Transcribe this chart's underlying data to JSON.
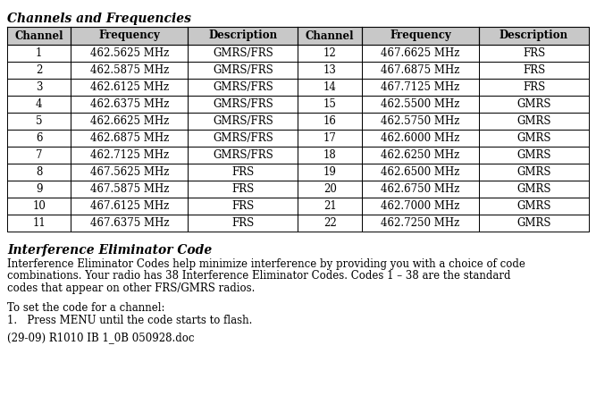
{
  "title": "Channels and Frequencies",
  "header": [
    "Channel",
    "Frequency",
    "Description",
    "Channel",
    "Frequency",
    "Description"
  ],
  "rows": [
    [
      "1",
      "462.5625 MHz",
      "GMRS/FRS",
      "12",
      "467.6625 MHz",
      "FRS"
    ],
    [
      "2",
      "462.5875 MHz",
      "GMRS/FRS",
      "13",
      "467.6875 MHz",
      "FRS"
    ],
    [
      "3",
      "462.6125 MHz",
      "GMRS/FRS",
      "14",
      "467.7125 MHz",
      "FRS"
    ],
    [
      "4",
      "462.6375 MHz",
      "GMRS/FRS",
      "15",
      "462.5500 MHz",
      "GMRS"
    ],
    [
      "5",
      "462.6625 MHz",
      "GMRS/FRS",
      "16",
      "462.5750 MHz",
      "GMRS"
    ],
    [
      "6",
      "462.6875 MHz",
      "GMRS/FRS",
      "17",
      "462.6000 MHz",
      "GMRS"
    ],
    [
      "7",
      "462.7125 MHz",
      "GMRS/FRS",
      "18",
      "462.6250 MHz",
      "GMRS"
    ],
    [
      "8",
      "467.5625 MHz",
      "FRS",
      "19",
      "462.6500 MHz",
      "GMRS"
    ],
    [
      "9",
      "467.5875 MHz",
      "FRS",
      "20",
      "462.6750 MHz",
      "GMRS"
    ],
    [
      "10",
      "467.6125 MHz",
      "FRS",
      "21",
      "462.7000 MHz",
      "GMRS"
    ],
    [
      "11",
      "467.6375 MHz",
      "FRS",
      "22",
      "462.7250 MHz",
      "GMRS"
    ]
  ],
  "header_bg": "#c8c8c8",
  "header_fg": "#000000",
  "border_color": "#000000",
  "section2_title": "Interference Eliminator Code",
  "section2_body1": "Interference Eliminator Codes help minimize interference by providing you with a choice of code",
  "section2_body2": "combinations. Your radio has 38 Interference Eliminator Codes. Codes 1 – 38 are the standard",
  "section2_body3": "codes that appear on other FRS/GMRS radios.",
  "section2_extra1": "To set the code for a channel:",
  "section2_extra2": "1.   Press MENU until the code starts to flash.",
  "footer": "(29-09) R1010 IB 1_0B 050928.doc",
  "bg_color": "#ffffff",
  "title_fontsize": 10,
  "header_fontsize": 8.5,
  "cell_fontsize": 8.5,
  "body_fontsize": 8.5,
  "footer_fontsize": 8.5
}
